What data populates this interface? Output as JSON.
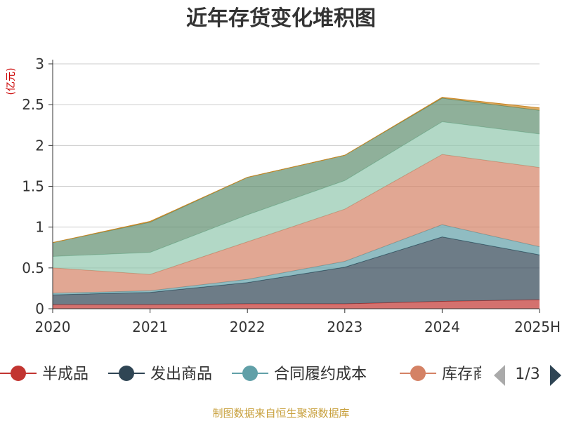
{
  "chart_data": {
    "type": "area",
    "stacked": true,
    "title": "近年存货变化堆积图",
    "unit_label": "(亿元)",
    "x": [
      "2020",
      "2021",
      "2022",
      "2023",
      "2024",
      "2025H"
    ],
    "ylim": [
      0,
      3
    ],
    "yticks": [
      "0",
      "0.5",
      "1",
      "1.5",
      "2",
      "2.5",
      "3"
    ],
    "grid": true,
    "series": [
      {
        "name": "半成品",
        "color": "#c23531",
        "values": [
          0.05,
          0.05,
          0.06,
          0.06,
          0.09,
          0.11
        ]
      },
      {
        "name": "发出商品",
        "color": "#2f4554",
        "values": [
          0.12,
          0.15,
          0.26,
          0.45,
          0.79,
          0.55
        ]
      },
      {
        "name": "合同履约成本",
        "color": "#61a0a8",
        "values": [
          0.02,
          0.02,
          0.04,
          0.07,
          0.15,
          0.1
        ]
      },
      {
        "name": "库存商品",
        "color": "#d48265",
        "values": [
          0.31,
          0.2,
          0.46,
          0.64,
          0.86,
          0.97
        ]
      },
      {
        "name": "",
        "color": "#91c7ae",
        "values": [
          0.14,
          0.27,
          0.33,
          0.35,
          0.4,
          0.41
        ]
      },
      {
        "name": "",
        "color": "#5f8f6f",
        "values": [
          0.17,
          0.37,
          0.46,
          0.31,
          0.29,
          0.29
        ]
      },
      {
        "name": "",
        "color": "#ca8622",
        "values": [
          0.0,
          0.01,
          0.0,
          0.0,
          0.01,
          0.03
        ]
      }
    ],
    "legend": {
      "position": "bottom",
      "visible_items": [
        "半成品",
        "发出商品",
        "合同履约成本",
        "库存商"
      ],
      "page": "1/3"
    }
  },
  "footer": "制图数据来自恒生聚源数据库"
}
